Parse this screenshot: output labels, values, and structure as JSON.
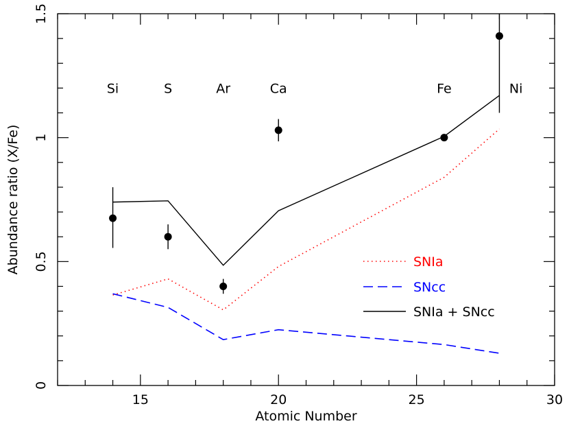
{
  "chart_data": {
    "type": "line",
    "title": "",
    "xlabel": "Atomic Number",
    "ylabel": "Abundance ratio (X/Fe)",
    "xlim": [
      12,
      30
    ],
    "ylim": [
      0,
      1.5
    ],
    "x_ticks": [
      15,
      20,
      25,
      30
    ],
    "y_ticks": [
      0,
      0.5,
      1,
      1.5
    ],
    "x_tick_labels": [
      "15",
      "20",
      "25",
      "30"
    ],
    "y_tick_labels": [
      "0",
      "0.5",
      "1",
      "1.5"
    ],
    "grid": false,
    "legend_position": "lower-right",
    "element_labels": [
      {
        "text": "Si",
        "x": 14
      },
      {
        "text": "S",
        "x": 16
      },
      {
        "text": "Ar",
        "x": 18
      },
      {
        "text": "Ca",
        "x": 20
      },
      {
        "text": "Fe",
        "x": 26
      },
      {
        "text": "Ni",
        "x": 28.6
      }
    ],
    "element_label_y": 1.2,
    "observed": {
      "points": [
        {
          "x": 14,
          "y": 0.675,
          "err_low": 0.555,
          "err_high": 0.8
        },
        {
          "x": 16,
          "y": 0.6,
          "err_low": 0.55,
          "err_high": 0.65
        },
        {
          "x": 18,
          "y": 0.4,
          "err_low": 0.37,
          "err_high": 0.43
        },
        {
          "x": 20,
          "y": 1.03,
          "err_low": 0.985,
          "err_high": 1.075
        },
        {
          "x": 26,
          "y": 1.0,
          "err_low": 1.0,
          "err_high": 1.0
        },
        {
          "x": 28,
          "y": 1.41,
          "err_low": 1.1,
          "err_high": 1.5
        }
      ]
    },
    "series": [
      {
        "name": "SNIa",
        "style": "dotted",
        "color": "#ff0000",
        "x": [
          14,
          16,
          18,
          20,
          26,
          28
        ],
        "y": [
          0.365,
          0.43,
          0.305,
          0.48,
          0.84,
          1.035
        ]
      },
      {
        "name": "SNcc",
        "style": "dashed",
        "color": "#0000ff",
        "x": [
          14,
          16,
          18,
          20,
          26,
          28
        ],
        "y": [
          0.37,
          0.315,
          0.185,
          0.225,
          0.165,
          0.13
        ]
      },
      {
        "name": "SNIa + SNcc",
        "style": "solid",
        "color": "#000000",
        "x": [
          14,
          16,
          18,
          20,
          26,
          28
        ],
        "y": [
          0.74,
          0.745,
          0.485,
          0.705,
          1.005,
          1.17
        ]
      }
    ]
  }
}
